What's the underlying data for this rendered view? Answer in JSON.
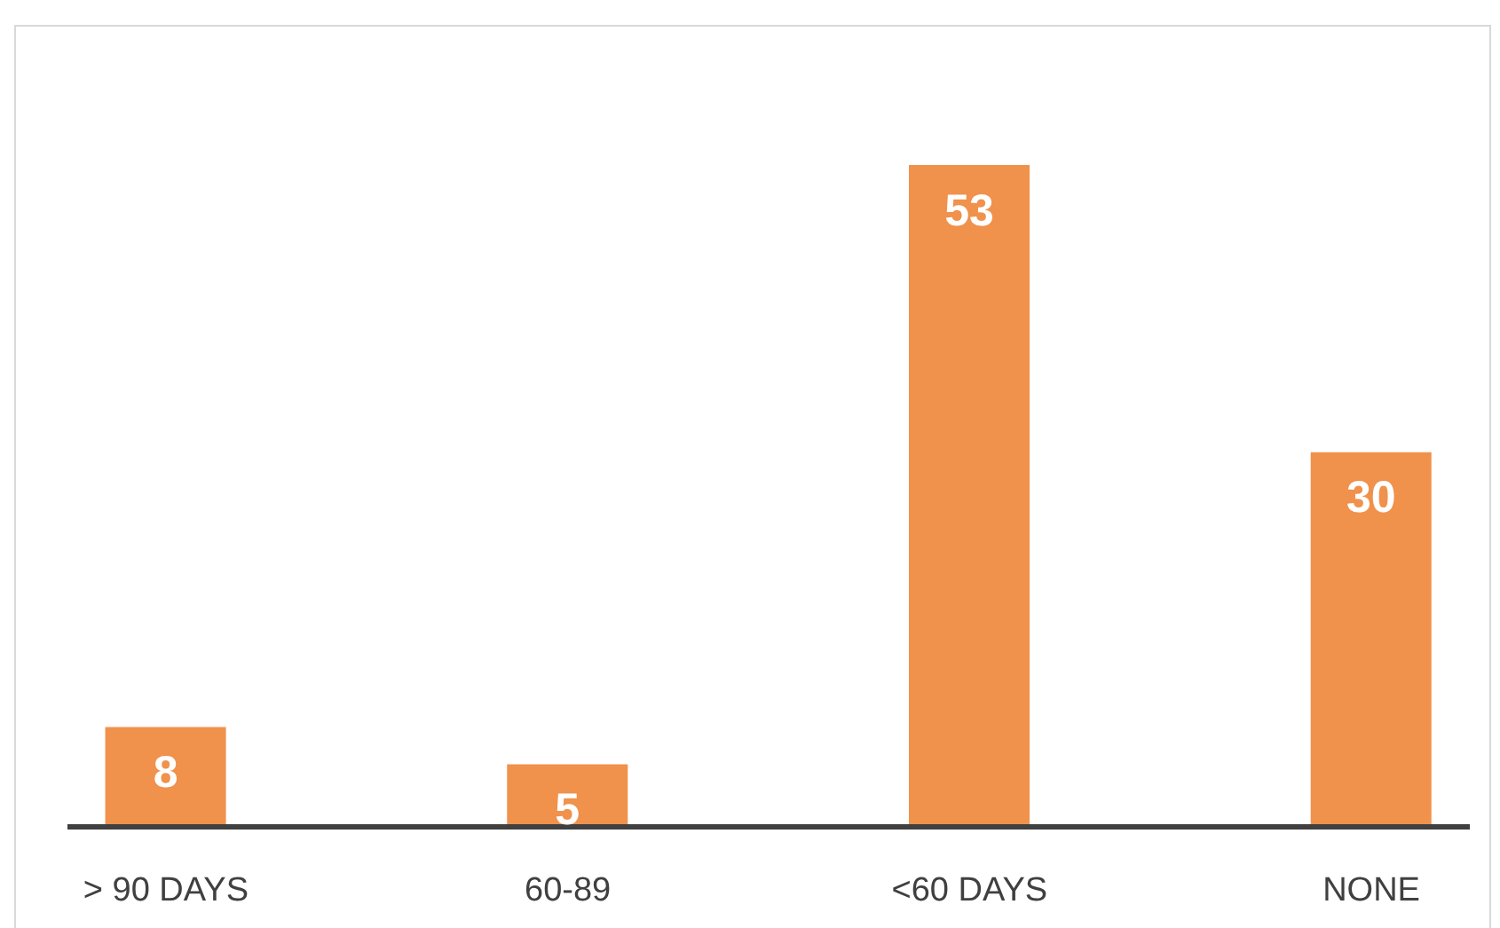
{
  "chart_data": {
    "type": "bar",
    "categories": [
      "> 90 DAYS",
      "60-89",
      "<60 DAYS",
      "NONE"
    ],
    "values": [
      8,
      5,
      53,
      30
    ],
    "color": "#f0914c",
    "data_labels": true
  }
}
